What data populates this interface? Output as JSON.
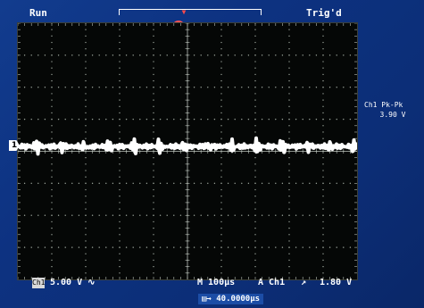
{
  "status": {
    "run": "Run",
    "trigger": "Trig'd"
  },
  "markers": {
    "trigger_position": "▾",
    "trigger_t": "T",
    "channel": "1"
  },
  "measurement": {
    "label": "Ch1 Pk-Pk",
    "value": "3.90 V"
  },
  "bottom": {
    "ch1_badge": "Ch1",
    "ch1_scale": "5.00 V ∿",
    "timebase": "M 100µs",
    "trigger_source": "A  Ch1",
    "trigger_slope_icon": "rising-edge-icon",
    "trigger_slope_glyph": "↗",
    "trigger_level": "1.80 V"
  },
  "horizontal_offset": {
    "icon": "▤→",
    "value": "40.0000µs"
  },
  "colors": {
    "trace": "#ffffff",
    "trigger_marker": "#ff4b4b",
    "screen": "#0d3281",
    "graticule": "#050706"
  }
}
